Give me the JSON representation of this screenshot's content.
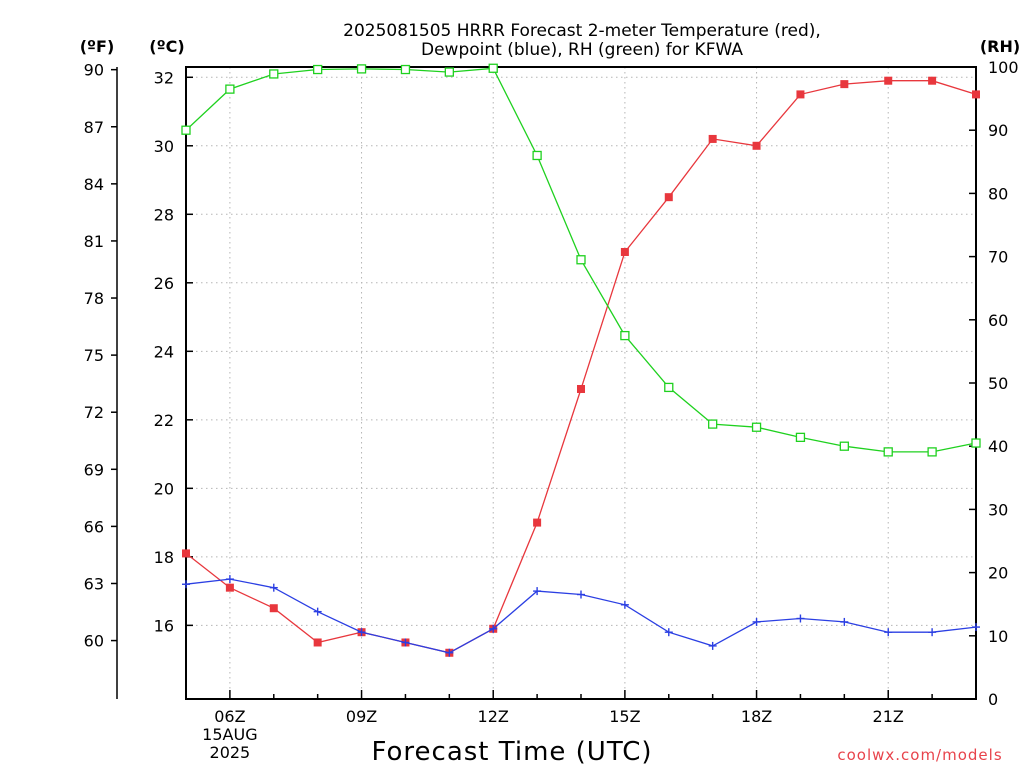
{
  "chart_data": {
    "type": "line",
    "title_lines": [
      "2025081505 HRRR Forecast 2-meter Temperature (red),",
      "Dewpoint (blue), RH (green) for KFWA"
    ],
    "xlabel": "Forecast Time (UTC)",
    "credit": "coolwx.com/models",
    "x_ticks": [
      {
        "hour": 6,
        "lines": [
          "06Z",
          "15AUG",
          "2025"
        ]
      },
      {
        "hour": 9,
        "lines": [
          "09Z"
        ]
      },
      {
        "hour": 12,
        "lines": [
          "12Z"
        ]
      },
      {
        "hour": 15,
        "lines": [
          "15Z"
        ]
      },
      {
        "hour": 18,
        "lines": [
          "18Z"
        ]
      },
      {
        "hour": 21,
        "lines": [
          "21Z"
        ]
      }
    ],
    "xlim": [
      5,
      23
    ],
    "axes": {
      "celsius": {
        "unit": "(ºC)",
        "ticks": [
          16,
          18,
          20,
          22,
          24,
          26,
          28,
          30,
          32
        ],
        "ylim": [
          13.85,
          32.3
        ]
      },
      "fahrenheit": {
        "unit": "(ºF)",
        "ticks": [
          60,
          63,
          66,
          69,
          72,
          75,
          78,
          81,
          84,
          87,
          90
        ]
      },
      "rh": {
        "unit": "(RH)",
        "ticks": [
          0,
          10,
          20,
          30,
          40,
          50,
          60,
          70,
          80,
          90,
          100
        ],
        "ylim": [
          0,
          100
        ]
      }
    },
    "grid": true,
    "series": [
      {
        "key": "temperature",
        "color": "#e8373d",
        "marker": "filled-square",
        "axis": "celsius",
        "x": [
          5,
          6,
          7,
          8,
          9,
          10,
          11,
          12,
          13,
          14,
          15,
          16,
          17,
          18,
          19,
          20,
          21,
          22,
          23
        ],
        "values": [
          18.1,
          17.1,
          16.5,
          15.5,
          15.8,
          15.5,
          15.2,
          15.9,
          19.0,
          22.9,
          26.9,
          28.5,
          30.2,
          30.0,
          31.5,
          31.8,
          31.9,
          31.9,
          31.5
        ]
      },
      {
        "key": "dewpoint",
        "color": "#2b3fe3",
        "marker": "plus",
        "axis": "celsius",
        "x": [
          5,
          6,
          7,
          8,
          9,
          10,
          11,
          12,
          13,
          14,
          15,
          16,
          17,
          18,
          19,
          20,
          21,
          22,
          23
        ],
        "values": [
          17.2,
          17.35,
          17.1,
          16.4,
          15.8,
          15.5,
          15.2,
          15.9,
          17.0,
          16.9,
          16.6,
          15.8,
          15.4,
          16.1,
          16.2,
          16.1,
          15.8,
          15.8,
          15.95
        ]
      },
      {
        "key": "rh",
        "color": "#1fd11f",
        "marker": "open-square",
        "axis": "rh",
        "x": [
          5,
          6,
          7,
          8,
          9,
          10,
          11,
          12,
          13,
          14,
          15,
          16,
          17,
          18,
          19,
          20,
          21,
          22,
          23
        ],
        "values": [
          90,
          96.5,
          98.9,
          99.6,
          99.7,
          99.6,
          99.2,
          99.8,
          86,
          69.5,
          57.5,
          49.3,
          43.5,
          43,
          41.4,
          40,
          39.1,
          39.1,
          40.5
        ]
      }
    ]
  }
}
